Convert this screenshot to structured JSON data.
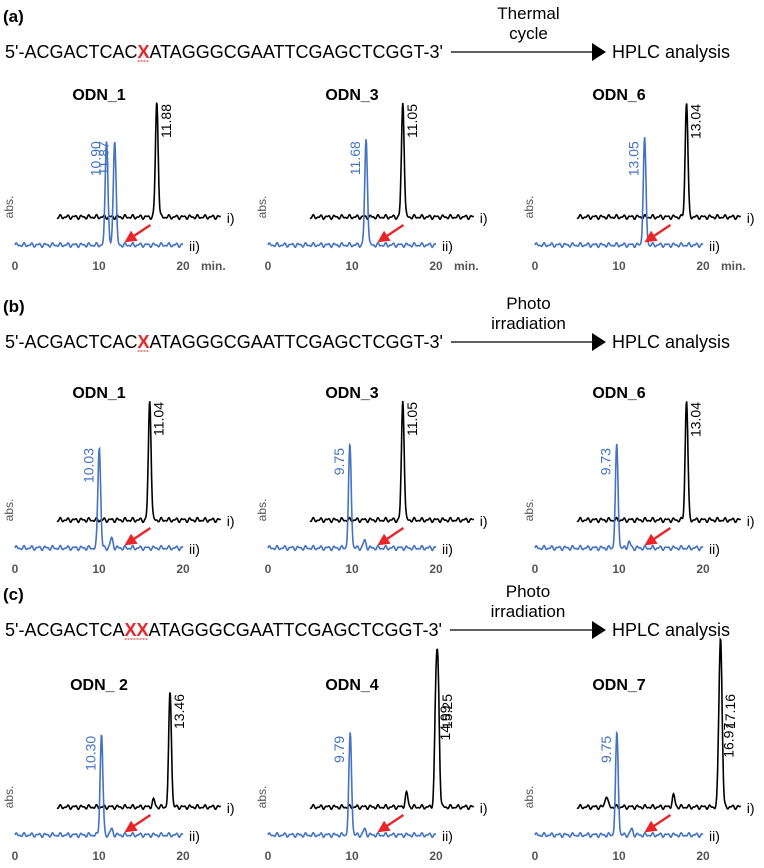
{
  "colors": {
    "blue": "#4472c4",
    "black": "#000000",
    "red": "#e8262a",
    "gray": "#7f7f7f"
  },
  "sections": [
    {
      "label": "(a)",
      "seq_prefix": "5'-ACGACTCAC",
      "seq_x": "X",
      "seq_suffix": "ATAGGGCGAATTCGAGCTCGGT-3'",
      "process": [
        "Thermal",
        "cycle"
      ],
      "result": "HPLC analysis",
      "show_min": true
    },
    {
      "label": "(b)",
      "seq_prefix": "5'-ACGACTCAC",
      "seq_x": "X",
      "seq_suffix": "ATAGGGCGAATTCGAGCTCGGT-3'",
      "process": [
        "Photo",
        "irradiation"
      ],
      "result": "HPLC analysis",
      "show_min": false
    },
    {
      "label": "(c)",
      "seq_prefix": "5'-ACGACTCA",
      "seq_x": "XX",
      "seq_suffix": "ATAGGGCGAATTCGAGCTCGGT-3'",
      "process": [
        "Photo",
        "irradiation"
      ],
      "result": "HPLC analysis",
      "show_min": false
    }
  ],
  "ticks": [
    "0",
    "10",
    "20"
  ],
  "min_label": "min.",
  "ylabel": "abs.",
  "trace_labels": [
    "i)",
    "ii)"
  ],
  "chart_data": [
    {
      "type": "line",
      "section": "(a)",
      "title": "ODN_1",
      "xlim": [
        0,
        20
      ],
      "series": [
        {
          "name": "i)",
          "color": "black",
          "offset_x": 5,
          "peaks": [
            {
              "x": 11.88,
              "h": 1.0,
              "label": "11.88"
            }
          ]
        },
        {
          "name": "ii)",
          "color": "blue",
          "offset_x": 0,
          "peaks": [
            {
              "x": 10.9,
              "h": 0.92,
              "label": "10.90"
            },
            {
              "x": 11.87,
              "h": 0.92,
              "label": "11.87"
            }
          ]
        }
      ]
    },
    {
      "type": "line",
      "section": "(a)",
      "title": "ODN_3",
      "xlim": [
        0,
        20
      ],
      "series": [
        {
          "name": "i)",
          "color": "black",
          "offset_x": 5,
          "peaks": [
            {
              "x": 11.05,
              "h": 1.0,
              "label": "11.05"
            }
          ]
        },
        {
          "name": "ii)",
          "color": "blue",
          "offset_x": 0,
          "peaks": [
            {
              "x": 11.68,
              "h": 0.92,
              "label": "11.68"
            }
          ]
        }
      ]
    },
    {
      "type": "line",
      "section": "(a)",
      "title": "ODN_6",
      "xlim": [
        0,
        20
      ],
      "series": [
        {
          "name": "i)",
          "color": "black",
          "offset_x": 5,
          "peaks": [
            {
              "x": 13.04,
              "h": 1.0,
              "label": "13.04"
            }
          ]
        },
        {
          "name": "ii)",
          "color": "blue",
          "offset_x": 0,
          "peaks": [
            {
              "x": 13.05,
              "h": 0.92,
              "label": "13.05"
            }
          ]
        }
      ]
    },
    {
      "type": "line",
      "section": "(b)",
      "title": "ODN_1",
      "xlim": [
        0,
        20
      ],
      "series": [
        {
          "name": "i)",
          "color": "black",
          "offset_x": 5,
          "peaks": [
            {
              "x": 11.04,
              "h": 1.0,
              "label": "11.04"
            }
          ]
        },
        {
          "name": "ii)",
          "color": "blue",
          "offset_x": 0,
          "peaks": [
            {
              "x": 10.03,
              "h": 0.85,
              "label": "10.03"
            },
            {
              "x": 11.5,
              "h": 0.08,
              "label": ""
            }
          ]
        }
      ]
    },
    {
      "type": "line",
      "section": "(b)",
      "title": "ODN_3",
      "xlim": [
        0,
        20
      ],
      "series": [
        {
          "name": "i)",
          "color": "black",
          "offset_x": 5,
          "peaks": [
            {
              "x": 11.05,
              "h": 1.0,
              "label": "11.05"
            }
          ]
        },
        {
          "name": "ii)",
          "color": "blue",
          "offset_x": 0,
          "peaks": [
            {
              "x": 9.75,
              "h": 0.85,
              "label": "9.75"
            },
            {
              "x": 11.5,
              "h": 0.06,
              "label": ""
            }
          ]
        }
      ]
    },
    {
      "type": "line",
      "section": "(b)",
      "title": "ODN_6",
      "xlim": [
        0,
        20
      ],
      "series": [
        {
          "name": "i)",
          "color": "black",
          "offset_x": 5,
          "peaks": [
            {
              "x": 13.04,
              "h": 1.0,
              "label": "13.04"
            }
          ]
        },
        {
          "name": "ii)",
          "color": "blue",
          "offset_x": 0,
          "peaks": [
            {
              "x": 9.73,
              "h": 0.85,
              "label": "9.73"
            },
            {
              "x": 11.2,
              "h": 0.05,
              "label": ""
            }
          ]
        }
      ]
    },
    {
      "type": "line",
      "section": "(c)",
      "title": "ODN_ 2",
      "xlim": [
        0,
        20
      ],
      "series": [
        {
          "name": "i)",
          "color": "black",
          "offset_x": 5,
          "peaks": [
            {
              "x": 13.46,
              "h": 1.0,
              "label": "13.46"
            },
            {
              "x": 11.5,
              "h": 0.06,
              "label": ""
            }
          ]
        },
        {
          "name": "ii)",
          "color": "blue",
          "offset_x": 0,
          "peaks": [
            {
              "x": 10.3,
              "h": 0.88,
              "label": "10.30"
            },
            {
              "x": 11.5,
              "h": 0.05,
              "label": ""
            }
          ]
        }
      ]
    },
    {
      "type": "line",
      "section": "(c)",
      "title": "ODN_4",
      "xlim": [
        0,
        20
      ],
      "series": [
        {
          "name": "i)",
          "color": "black",
          "offset_x": 5,
          "peaks": [
            {
              "x": 14.99,
              "h": 0.9,
              "label": "14.99"
            },
            {
              "x": 15.25,
              "h": 1.0,
              "label": "15.25"
            },
            {
              "x": 11.5,
              "h": 0.12,
              "label": ""
            }
          ]
        },
        {
          "name": "ii)",
          "color": "blue",
          "offset_x": 0,
          "peaks": [
            {
              "x": 9.79,
              "h": 0.88,
              "label": "9.79"
            },
            {
              "x": 11.5,
              "h": 0.05,
              "label": ""
            }
          ]
        }
      ]
    },
    {
      "type": "line",
      "section": "(c)",
      "title": "ODN_7",
      "xlim": [
        0,
        20
      ],
      "series": [
        {
          "name": "i)",
          "color": "black",
          "offset_x": 5,
          "peaks": [
            {
              "x": 16.97,
              "h": 0.75,
              "label": "16.97"
            },
            {
              "x": 17.16,
              "h": 1.0,
              "label": "17.16"
            },
            {
              "x": 11.5,
              "h": 0.1,
              "label": ""
            },
            {
              "x": 3.5,
              "h": 0.1,
              "label": ""
            }
          ]
        },
        {
          "name": "ii)",
          "color": "blue",
          "offset_x": 0,
          "peaks": [
            {
              "x": 9.75,
              "h": 0.88,
              "label": "9.75"
            },
            {
              "x": 11.5,
              "h": 0.05,
              "label": ""
            }
          ]
        }
      ]
    }
  ]
}
